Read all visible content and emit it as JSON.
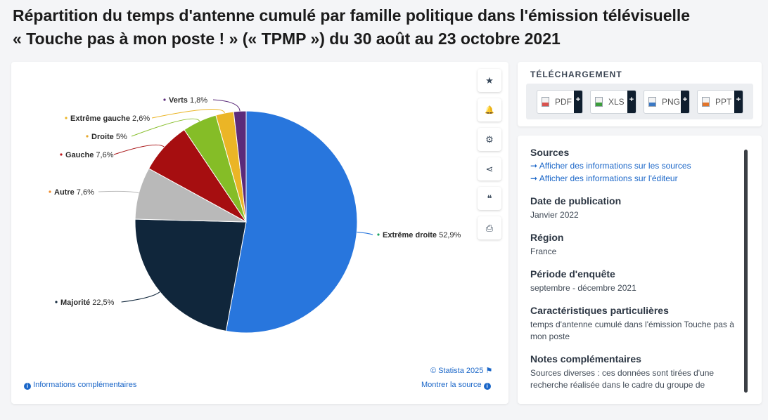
{
  "title_line1": "Répartition du temps d'antenne cumulé par famille politique dans l'émission télévisuelle",
  "title_line2": "« Touche pas à mon poste ! » (« TPMP ») du 30 août au 23 octobre 2021",
  "chart_data": {
    "type": "pie",
    "unit": "%",
    "slices": [
      {
        "label": "Extrême droite",
        "value": 52.9,
        "display": "52,9%",
        "color": "#2876dd",
        "bullet": "#1ea362"
      },
      {
        "label": "Majorité",
        "value": 22.5,
        "display": "22,5%",
        "color": "#10263b",
        "bullet": "#10263b"
      },
      {
        "label": "Autre",
        "value": 7.6,
        "display": "7,6%",
        "color": "#b9b9b9",
        "bullet": "#f08c2c"
      },
      {
        "label": "Gauche",
        "value": 7.6,
        "display": "7,6%",
        "color": "#a60e10",
        "bullet": "#c0171b"
      },
      {
        "label": "Droite",
        "value": 5,
        "display": "5%",
        "color": "#85bd27",
        "bullet": "#e7a82b"
      },
      {
        "label": "Extrême gauche",
        "value": 2.6,
        "display": "2,6%",
        "color": "#ebb526",
        "bullet": "#ebb526"
      },
      {
        "label": "Verts",
        "value": 1.8,
        "display": "1,8%",
        "color": "#5b2b7a",
        "bullet": "#5b2b7a"
      }
    ]
  },
  "toolbar": {
    "icons": [
      "star-icon",
      "bell-icon",
      "gear-icon",
      "share-icon",
      "quote-icon",
      "print-icon"
    ],
    "glyphs": [
      "★",
      "🔔",
      "⚙",
      "⋖",
      "❝",
      "⎙"
    ]
  },
  "credits": {
    "statista": "© Statista 2025",
    "more_info": "Informations complémentaires",
    "show_source": "Montrer la source"
  },
  "download": {
    "title": "TÉLÉCHARGEMENT",
    "buttons": [
      {
        "label": "PDF",
        "color": "#d9534f"
      },
      {
        "label": "XLS",
        "color": "#3c9d3c"
      },
      {
        "label": "PNG",
        "color": "#3b78c4"
      },
      {
        "label": "PPT",
        "color": "#e2742a"
      }
    ],
    "plus": "+"
  },
  "info": {
    "sources_title": "Sources",
    "link_sources": "Afficher des informations sur les sources",
    "link_editor": "Afficher des informations sur l'éditeur",
    "date_title": "Date de publication",
    "date_value": "Janvier 2022",
    "region_title": "Région",
    "region_value": "France",
    "period_title": "Période d'enquête",
    "period_value": "septembre - décembre 2021",
    "features_title": "Caractéristiques particulières",
    "features_value": "temps d'antenne cumulé dans l'émission Touche pas à mon poste",
    "notes_title": "Notes complémentaires",
    "notes_value": "Sources diverses : ces données sont tirées d'une recherche réalisée dans le cadre du groupe de"
  }
}
